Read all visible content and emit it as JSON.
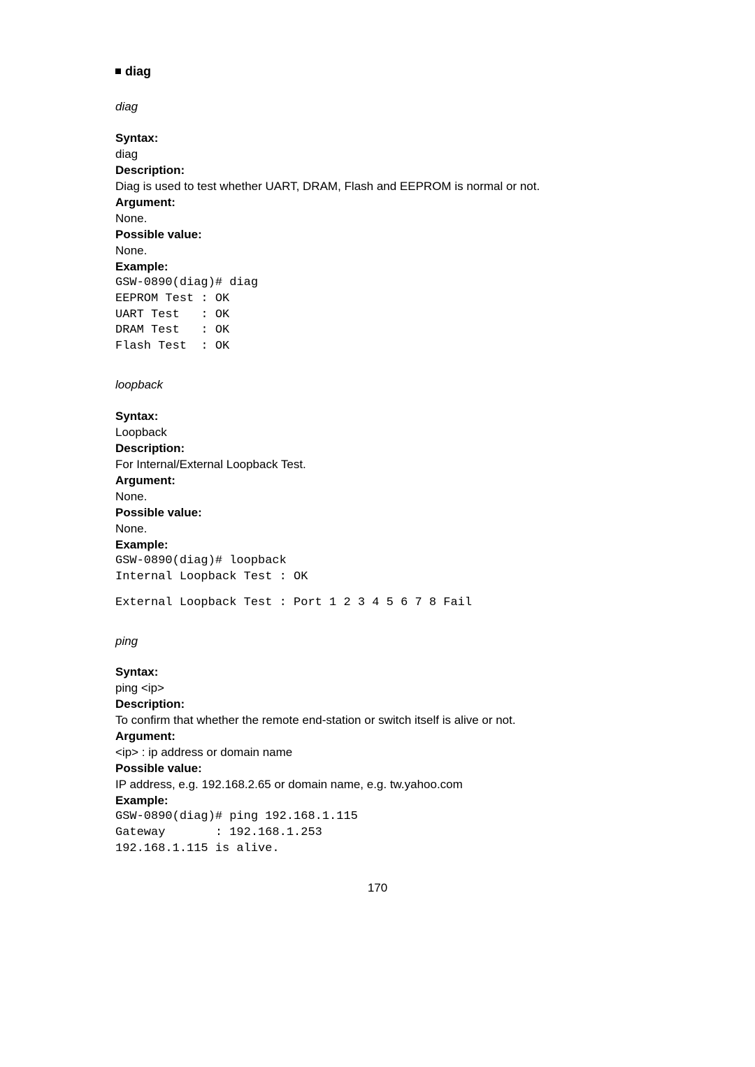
{
  "section": {
    "title": "diag"
  },
  "commands": {
    "diag": {
      "name": "diag",
      "syntax_label": "Syntax:",
      "syntax": "diag",
      "description_label": "Description:",
      "description": "Diag is used to test whether UART, DRAM, Flash and EEPROM is normal or not.",
      "argument_label": "Argument:",
      "argument": "None.",
      "possible_label": "Possible value:",
      "possible": "None.",
      "example_label": "Example:",
      "example_lines": {
        "l1": "GSW-0890(diag)# diag",
        "l2": "EEPROM Test : OK",
        "l3": "UART Test   : OK",
        "l4": "DRAM Test   : OK",
        "l5": "Flash Test  : OK"
      }
    },
    "loopback": {
      "name": "loopback",
      "syntax_label": "Syntax:",
      "syntax": "Loopback",
      "description_label": "Description:",
      "description": "For Internal/External Loopback Test.",
      "argument_label": "Argument:",
      "argument": "None.",
      "possible_label": "Possible value:",
      "possible": "None.",
      "example_label": "Example:",
      "example_lines": {
        "l1": "GSW-0890(diag)# loopback",
        "l2": "Internal Loopback Test : OK",
        "l3": "External Loopback Test : Port 1 2 3 4 5 6 7 8 Fail"
      }
    },
    "ping": {
      "name": "ping",
      "syntax_label": "Syntax:",
      "syntax": "ping <ip>",
      "description_label": "Description:",
      "description": "To confirm that whether the remote end-station or switch itself is alive or not.",
      "argument_label": "Argument:",
      "argument": "<ip> : ip address or domain name",
      "possible_label": "Possible value:",
      "possible": "IP address, e.g. 192.168.2.65 or domain name, e.g. tw.yahoo.com",
      "example_label": "Example:",
      "example_lines": {
        "l1": "GSW-0890(diag)# ping 192.168.1.115",
        "l2": "Gateway       : 192.168.1.253",
        "l3": "192.168.1.115 is alive."
      }
    }
  },
  "page_number": "170"
}
